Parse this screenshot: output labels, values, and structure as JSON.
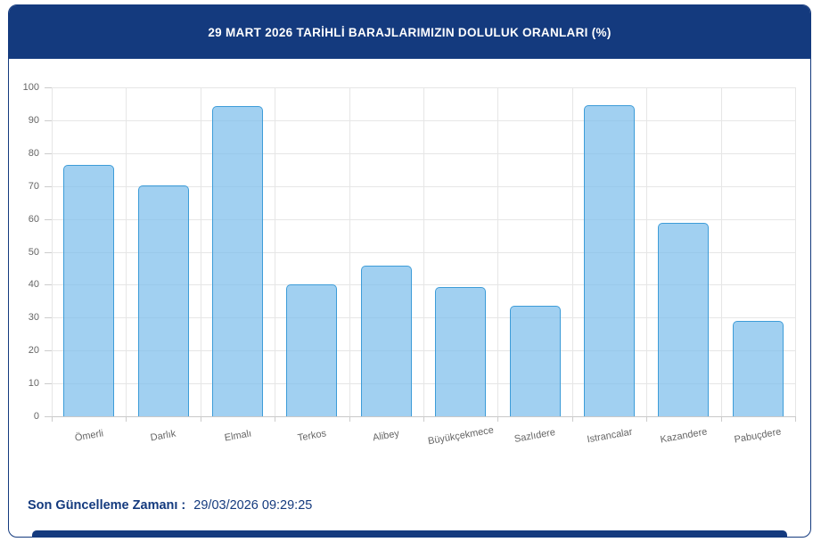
{
  "header": {
    "title": "29 MART 2026 TARİHLİ BARAJLARIMIZIN DOLULUK ORANLARI (%)"
  },
  "chart_data": {
    "type": "bar",
    "categories": [
      "Ömerli",
      "Darlık",
      "Elmalı",
      "Terkos",
      "Alibey",
      "Büyükçekmece",
      "Sazlıdere",
      "Istrancalar",
      "Kazandere",
      "Pabuçdere"
    ],
    "values": [
      76.3,
      70.3,
      94.2,
      40.0,
      45.9,
      39.3,
      33.5,
      94.5,
      58.7,
      29.0
    ],
    "title": "29 MART 2026 TARİHLİ BARAJLARIMIZIN DOLULUK ORANLARI (%)",
    "xlabel": "",
    "ylabel": "",
    "ylim": [
      0,
      100
    ],
    "ytick_step": 10,
    "yticks": [
      0,
      10,
      20,
      30,
      40,
      50,
      60,
      70,
      80,
      90,
      100
    ],
    "grid": true,
    "legend": false,
    "x_label_rotation_deg": -10
  },
  "footer": {
    "label": "Son Güncelleme Zamanı :",
    "value": "29/03/2026 09:29:25"
  },
  "colors": {
    "header_bg": "#143a7e",
    "header_text": "#ffffff",
    "bar_fill": "rgba(125,190,235,0.72)",
    "bar_border": "#3d9cd8",
    "gridline": "#e6e6e6",
    "axis_tick": "#cccccc",
    "axis_label": "#666666",
    "footer_text": "#143a7e"
  }
}
